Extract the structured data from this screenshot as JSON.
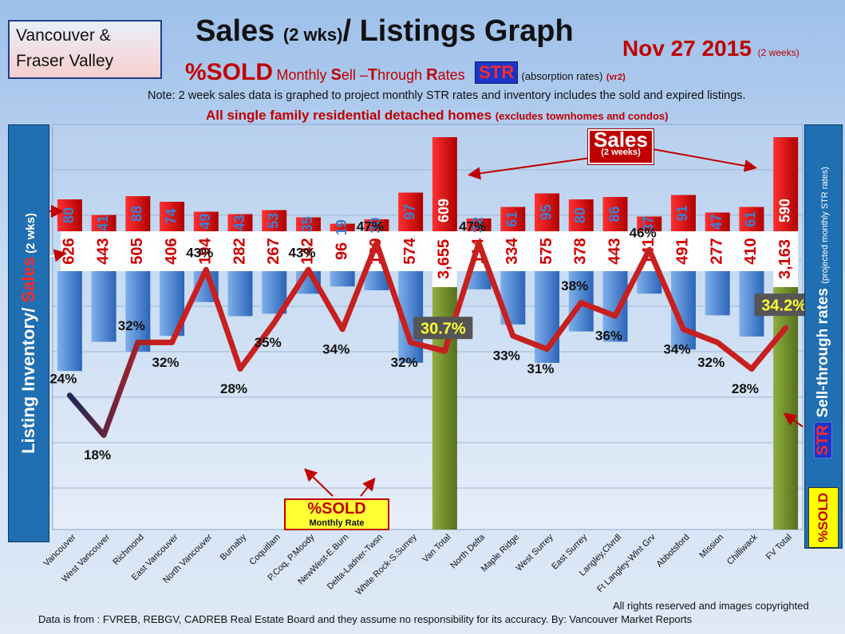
{
  "header": {
    "region_line1": "Vancouver &",
    "region_line2": "Fraser Valley",
    "title_main": "Sales ",
    "title_paren": "(2 wks)",
    "title_end": "/ Listings Graph",
    "date": "Nov 27 2015",
    "date_note": "(2 weeks)",
    "sold_label": "%SOLD",
    "monthly_text_1": "Monthly ",
    "monthly_S": "S",
    "monthly_text_2": "ell –",
    "monthly_T": "T",
    "monthly_text_3": "hrough ",
    "monthly_R": "R",
    "monthly_text_4": "ates",
    "str_badge": "STR",
    "absorption": "(absorption rates)",
    "version": "(vr2)",
    "note": "Note: 2 week sales data is graphed to project monthly STR rates and inventory includes the sold and expired listings.",
    "homes": "All single family residential detached homes ",
    "homes_paren": "(excludes townhomes and condos)"
  },
  "left_axis": {
    "part1": "Listing Inventory/ ",
    "part2": "Sales",
    "part3": " (2 wks)"
  },
  "right_axis": {
    "str": "STR",
    "text": " Sell-through rates ",
    "note": "(projected monthly STR rates)",
    "sold": "%SOLD"
  },
  "sold_badge": {
    "line1": "%SOLD",
    "line2": "Monthly Rate"
  },
  "sales_callout": {
    "line1": "Sales",
    "line2": "(2 weeks)"
  },
  "footer": {
    "copyright": "All rights reserved and  images copyrighted",
    "source": "Data is  from : FVREB, REBGV, CADREB Real Estate Board and they assume no responsibility  for its accuracy. By: Vancouver Market Reports"
  },
  "colors": {
    "sales": "#e00000",
    "listings": "#3f7fcf",
    "total": "#6f8f2a",
    "line": "#c81f1f",
    "line_start": "#1c2a55"
  },
  "chart_data": {
    "type": "bar",
    "categories": [
      "Vancouver",
      "West Vancouver",
      "Richmond",
      "East Vancouver",
      "North Vancouver",
      "Burnaby",
      "Coquitlam",
      "P.Coq, P.Moody",
      "NewWest-E.Burn",
      "Delta-Ladner-Twsn",
      "White Rock-S.Surrey",
      "Van Total",
      "North Delta",
      "Maple Ridge",
      "West Surrey",
      "East Surrey",
      "Langley,Clvrdl",
      "Ft Langley-Wlnt Grv",
      "Abbotsford",
      "Mission",
      "Chilliwack",
      "FV Total"
    ],
    "series": [
      {
        "name": "Sales",
        "values": [
          80,
          41,
          88,
          74,
          49,
          43,
          53,
          35,
          19,
          30,
          97,
          609,
          32,
          61,
          95,
          80,
          86,
          37,
          91,
          47,
          61,
          590
        ]
      },
      {
        "name": "Listing Inventory",
        "values": [
          626,
          443,
          505,
          406,
          194,
          282,
          267,
          142,
          96,
          120,
          574,
          3655,
          114,
          334,
          575,
          378,
          443,
          141,
          491,
          277,
          410,
          3163
        ]
      },
      {
        "name": "%SOLD",
        "values": [
          24,
          18,
          32,
          32,
          43,
          28,
          35,
          43,
          34,
          47,
          32,
          30.7,
          47,
          33,
          31,
          38,
          36,
          46,
          34,
          32,
          28,
          34.2
        ]
      }
    ],
    "sales_labels": [
      "80",
      "41",
      "88",
      "74",
      "49",
      "43",
      "53",
      "35",
      "19",
      "30",
      "97",
      "609",
      "32",
      "61",
      "95",
      "80",
      "86",
      "37",
      "91",
      "47",
      "61",
      "590"
    ],
    "listing_labels": [
      "626",
      "443",
      "505",
      "406",
      "194",
      "282",
      "267",
      "142",
      "96",
      "120",
      "574",
      "3,655",
      "114",
      "334",
      "575",
      "378",
      "443",
      "141",
      "491",
      "277",
      "410",
      "3,163"
    ],
    "percent_labels": [
      "24%",
      "18%",
      "32%",
      "32%",
      "43%",
      "28%",
      "35%",
      "43%",
      "34%",
      "47%",
      "32%",
      "30.7%",
      "47%",
      "33%",
      "31%",
      "38%",
      "36%",
      "46%",
      "34%",
      "32%",
      "28%",
      "34.2%"
    ],
    "total_indices": [
      11,
      21
    ],
    "grid": true
  }
}
